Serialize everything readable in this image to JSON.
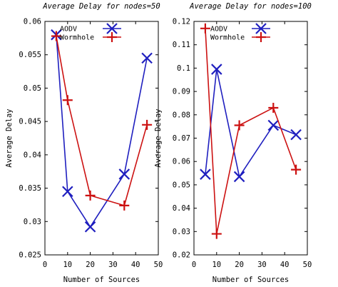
{
  "chart_data": [
    {
      "type": "line",
      "title": "Average Delay for nodes=50",
      "xlabel": "Number of Sources",
      "ylabel": "Average Delay",
      "xlim": [
        0,
        50
      ],
      "ylim": [
        0.025,
        0.06
      ],
      "xticks": [
        "0",
        "10",
        "20",
        "30",
        "40",
        "50"
      ],
      "xtick_values": [
        0,
        10,
        20,
        30,
        40,
        50
      ],
      "yticks": [
        "0.025",
        "0.03",
        "0.035",
        "0.04",
        "0.045",
        "0.05",
        "0.055",
        "0.06"
      ],
      "ytick_values": [
        0.025,
        0.03,
        0.035,
        0.04,
        0.045,
        0.05,
        0.055,
        0.06
      ],
      "grid": false,
      "legend": "top-left",
      "series": [
        {
          "name": "AODV",
          "color": "#1f1fbf",
          "marker": "x",
          "x": [
            5,
            10,
            20,
            35,
            45
          ],
          "y": [
            0.058,
            0.0345,
            0.0292,
            0.0371,
            0.0545
          ]
        },
        {
          "name": "Wormhole",
          "color": "#cc1111",
          "marker": "+",
          "x": [
            5,
            10,
            20,
            35,
            45
          ],
          "y": [
            0.0578,
            0.0482,
            0.0339,
            0.0324,
            0.0445
          ]
        }
      ]
    },
    {
      "type": "line",
      "title": "Average Delay for nodes=100",
      "xlabel": "Number of Sources",
      "ylabel": "Average Delay",
      "xlim": [
        0,
        50
      ],
      "ylim": [
        0.02,
        0.12
      ],
      "xticks": [
        "0",
        "10",
        "20",
        "30",
        "40",
        "50"
      ],
      "xtick_values": [
        0,
        10,
        20,
        30,
        40,
        50
      ],
      "yticks": [
        "0.02",
        "0.03",
        "0.04",
        "0.05",
        "0.06",
        "0.07",
        "0.08",
        "0.09",
        "0.1",
        "0.11",
        "0.12"
      ],
      "ytick_values": [
        0.02,
        0.03,
        0.04,
        0.05,
        0.06,
        0.07,
        0.08,
        0.09,
        0.1,
        0.11,
        0.12
      ],
      "grid": false,
      "legend": "top-left",
      "series": [
        {
          "name": "AODV",
          "color": "#1f1fbf",
          "marker": "x",
          "x": [
            5,
            10,
            20,
            35,
            45
          ],
          "y": [
            0.0545,
            0.0995,
            0.0535,
            0.0755,
            0.0715
          ]
        },
        {
          "name": "Wormhole",
          "color": "#cc1111",
          "marker": "+",
          "x": [
            5,
            10,
            20,
            35,
            45
          ],
          "y": [
            0.117,
            0.029,
            0.0755,
            0.083,
            0.0565
          ]
        }
      ]
    }
  ]
}
